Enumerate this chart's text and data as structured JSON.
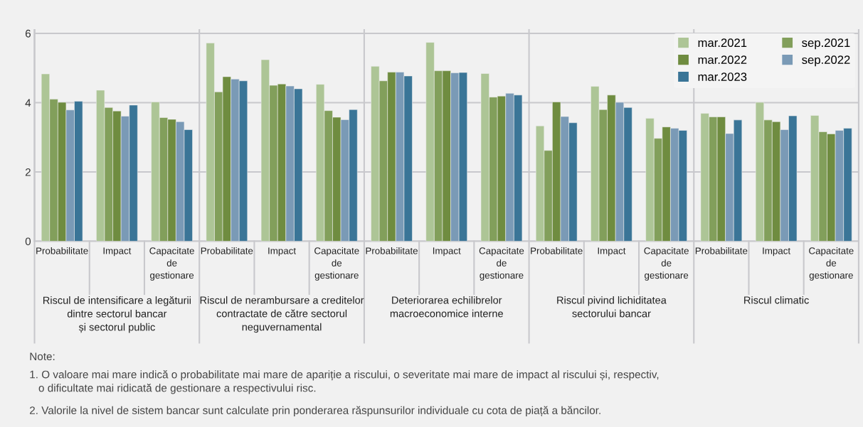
{
  "chart_data": {
    "type": "bar",
    "categories": [
      "Probabilitate",
      "Impact",
      "Capacitate\nde\ngestionare",
      "Probabilitate",
      "Impact",
      "Capacitate\nde\ngestionare",
      "Probabilitate",
      "Impact",
      "Capacitate\nde\ngestionare",
      "Probabilitate",
      "Impact",
      "Capacitate\nde\ngestionare",
      "Probabilitate",
      "Impact",
      "Capacitate\nde\ngestionare"
    ],
    "series": [
      {
        "name": "mar.2021",
        "color": "#adc596",
        "values": [
          4.83,
          4.36,
          4.02,
          5.72,
          5.24,
          4.53,
          5.05,
          5.74,
          4.84,
          3.33,
          4.47,
          3.55,
          3.69,
          4.01,
          3.63
        ]
      },
      {
        "name": "sep.2021",
        "color": "#829f5b",
        "values": [
          4.1,
          3.86,
          3.57,
          4.31,
          4.5,
          3.77,
          4.63,
          4.92,
          4.16,
          2.62,
          3.8,
          2.97,
          3.59,
          3.5,
          3.16
        ]
      },
      {
        "name": "mar.2022",
        "color": "#6f8c40",
        "values": [
          4.01,
          3.76,
          3.52,
          4.75,
          4.54,
          3.58,
          4.88,
          4.92,
          4.19,
          4.02,
          4.22,
          3.3,
          3.59,
          3.45,
          3.1
        ]
      },
      {
        "name": "sep.2022",
        "color": "#7a9ab6",
        "values": [
          3.79,
          3.61,
          3.45,
          4.68,
          4.48,
          3.51,
          4.88,
          4.86,
          4.27,
          3.6,
          4.01,
          3.26,
          3.11,
          3.22,
          3.2
        ]
      },
      {
        "name": "mar.2023",
        "color": "#3a7597",
        "values": [
          4.04,
          3.93,
          3.22,
          4.63,
          4.4,
          3.8,
          4.77,
          4.87,
          4.22,
          3.42,
          3.86,
          3.2,
          3.5,
          3.62,
          3.26
        ]
      }
    ],
    "ylim": [
      0,
      6.1
    ],
    "yticks": [
      0,
      2,
      4,
      6
    ],
    "grid": "y",
    "legend": "top right",
    "annotations": [
      "Riscul de intensificare a legăturii\ndintre sectorul bancar\nși sectorul public",
      "Riscul de nerambursare a creditelor\ncontractate de către sectorul\nneguvernamental",
      "Deteriorarea echilibrelor\nmacroeconomice interne",
      "Riscul pivind lichiditatea\nsectorului bancar",
      "Riscul climatic",
      "Note:",
      "1. O valoare mai mare indică o probabilitate mai mare de apariție a riscului, o severitate mai mare de impact al riscului și, respectiv,\n   o dificultate mai ridicată de gestionare a respectivului risc.",
      "2. Valorile la nivel de sistem bancar sunt calculate prin ponderarea răspunsurilor individuale cu cota de piață a băncilor."
    ]
  }
}
